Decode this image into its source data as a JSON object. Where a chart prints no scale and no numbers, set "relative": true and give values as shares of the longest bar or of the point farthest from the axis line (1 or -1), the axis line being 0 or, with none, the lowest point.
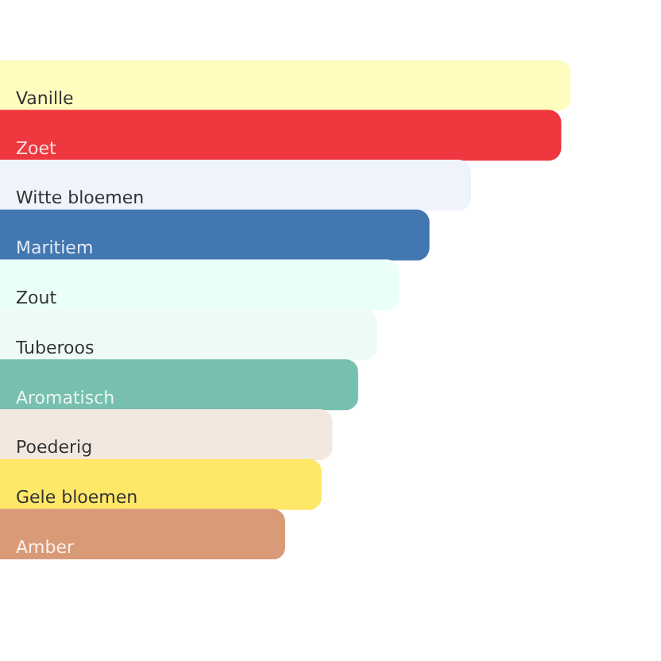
{
  "chart_data": {
    "type": "bar",
    "orientation": "horizontal",
    "relative": true,
    "categories": [
      "Vanille",
      "Zoet",
      "Witte bloemen",
      "Maritiem",
      "Zout",
      "Tuberoos",
      "Aromatisch",
      "Poederig",
      "Gele bloemen",
      "Amber"
    ],
    "values": [
      1,
      0.983,
      0.825,
      0.752,
      0.699,
      0.66,
      0.627,
      0.582,
      0.563,
      0.499
    ],
    "colors": [
      "#fffcc0",
      "#ee373e",
      "#eef3fc",
      "#4277b1",
      "#ebfff9",
      "#eefbf5",
      "#77bfae",
      "#f3e8e0",
      "#ffe768",
      "#d99a78"
    ]
  }
}
